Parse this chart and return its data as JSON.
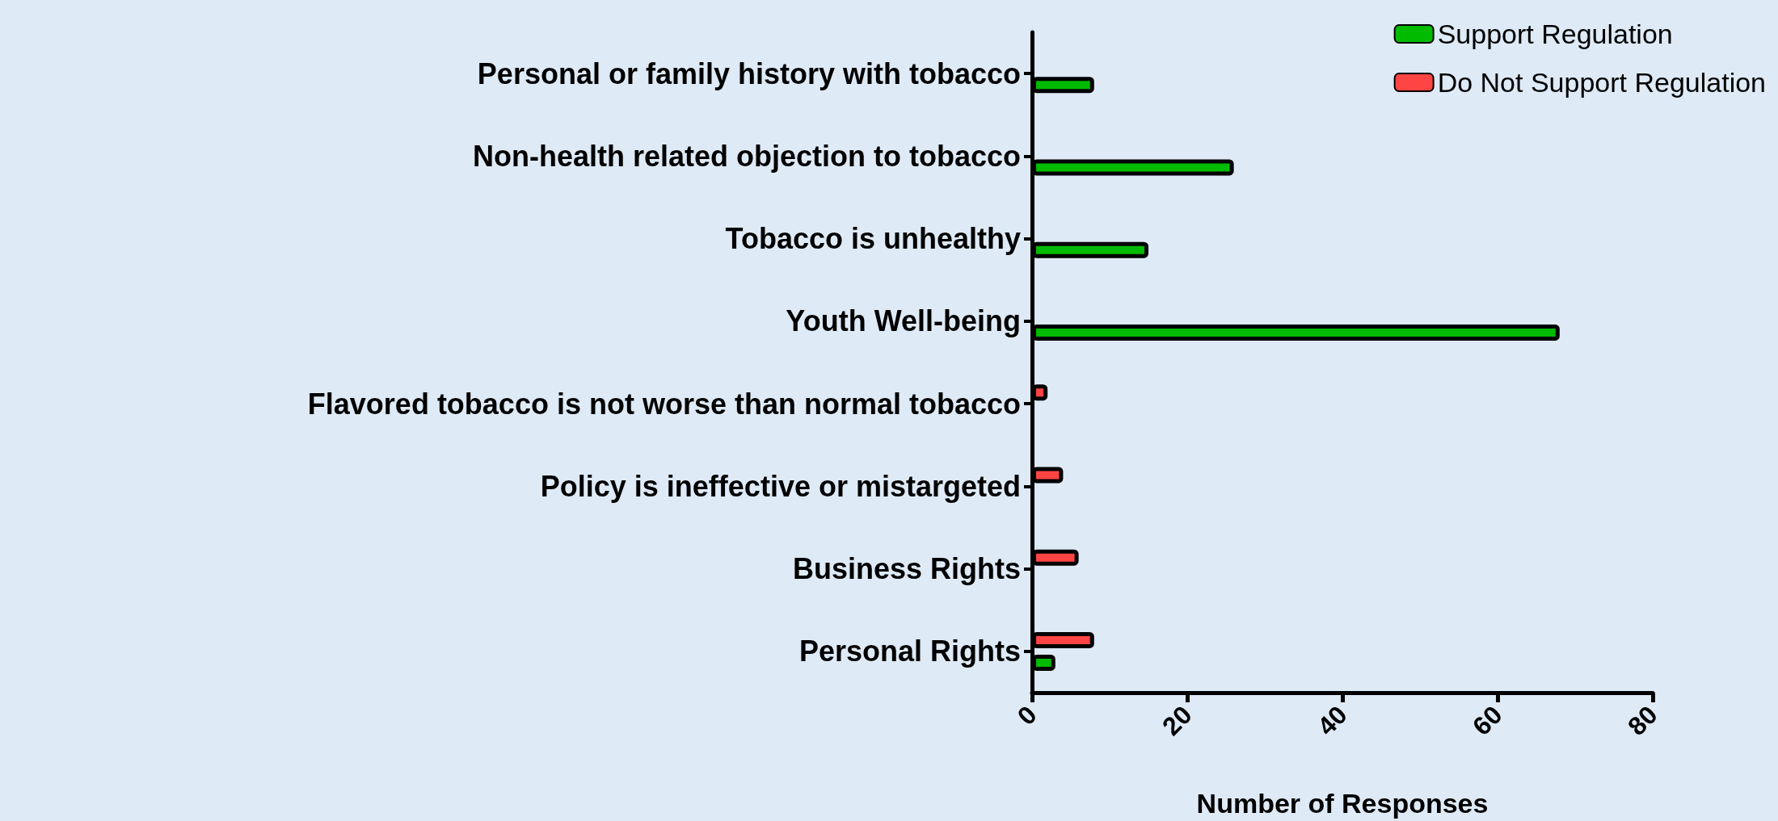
{
  "chart_data": {
    "type": "bar",
    "orientation": "horizontal",
    "xlabel": "Number of Responses",
    "categories": [
      "Personal or family history with tobacco",
      "Non-health related objection to tobacco",
      "Tobacco is unhealthy",
      "Youth Well-being",
      "Flavored tobacco is not worse than normal tobacco",
      "Policy is ineffective or mistargeted",
      "Business Rights",
      "Personal Rights"
    ],
    "series": [
      {
        "name": "Support Regulation",
        "color": "#00bb00",
        "values": [
          8,
          26,
          15,
          68,
          null,
          null,
          null,
          3
        ]
      },
      {
        "name": "Do Not Support Regulation",
        "color": "#ff4444",
        "values": [
          null,
          null,
          null,
          null,
          2,
          4,
          6,
          8
        ]
      }
    ],
    "xlim": [
      0,
      80
    ],
    "xticks": [
      0,
      20,
      40,
      60,
      80
    ],
    "grid": false,
    "legend": "top right"
  }
}
